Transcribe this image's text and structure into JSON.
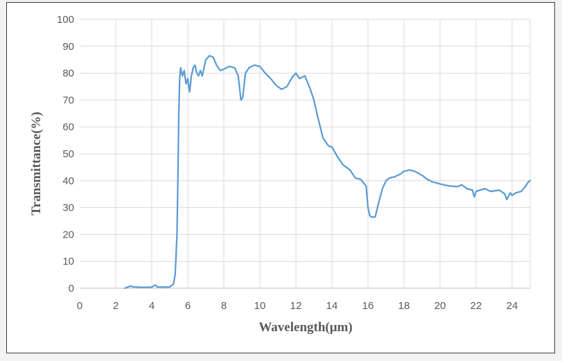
{
  "chart_data": {
    "type": "line",
    "xlabel": "Wavelength(μm)",
    "ylabel": "Transmittance(%)",
    "xlim": [
      0,
      25
    ],
    "ylim": [
      0,
      100
    ],
    "x_ticks": [
      "0",
      "2",
      "4",
      "6",
      "8",
      "10",
      "12",
      "14",
      "16",
      "18",
      "20",
      "22",
      "24"
    ],
    "y_ticks": [
      "0",
      "10",
      "20",
      "30",
      "40",
      "50",
      "60",
      "70",
      "80",
      "90",
      "100"
    ],
    "grid": true,
    "legend": "none",
    "line_color": "#5b9bd5",
    "series": [
      {
        "x": [
          2.5,
          2.8,
          3.0,
          3.5,
          4.0,
          4.2,
          4.3,
          4.5,
          5.0,
          5.2,
          5.3,
          5.4,
          5.45,
          5.5,
          5.55,
          5.6,
          5.7,
          5.8,
          5.9,
          6.0,
          6.1,
          6.2,
          6.3,
          6.4,
          6.5,
          6.6,
          6.7,
          6.8,
          7.0,
          7.2,
          7.4,
          7.6,
          7.8,
          8.0,
          8.3,
          8.6,
          8.8,
          8.95,
          9.05,
          9.2,
          9.4,
          9.7,
          10.0,
          10.3,
          10.6,
          10.9,
          11.2,
          11.5,
          11.8,
          12.0,
          12.2,
          12.5,
          12.8,
          13.0,
          13.2,
          13.5,
          13.8,
          14.0,
          14.3,
          14.6,
          15.0,
          15.3,
          15.6,
          15.9,
          16.0,
          16.1,
          16.2,
          16.4,
          16.6,
          16.8,
          17.0,
          17.2,
          17.5,
          17.8,
          18.0,
          18.3,
          18.6,
          19.0,
          19.3,
          19.6,
          19.8,
          20.0,
          20.3,
          20.6,
          21.0,
          21.2,
          21.5,
          21.8,
          21.9,
          22.0,
          22.2,
          22.5,
          22.8,
          23.0,
          23.3,
          23.6,
          23.7,
          23.9,
          24.0,
          24.2,
          24.5,
          24.7,
          24.9,
          25.0
        ],
        "y": [
          0,
          0.8,
          0.5,
          0.3,
          0.4,
          1.2,
          0.5,
          0.4,
          0.5,
          1.5,
          5,
          20,
          40,
          65,
          78,
          82,
          79,
          81,
          76,
          78,
          73,
          79,
          82,
          83,
          80,
          79,
          81,
          79,
          85,
          86.5,
          86,
          83,
          81,
          81.5,
          82.5,
          82,
          79,
          70,
          71,
          80,
          82,
          83,
          82.5,
          80,
          78,
          75.5,
          74,
          75,
          78.5,
          80,
          78,
          79,
          74,
          70,
          64,
          56,
          53,
          52.5,
          49,
          46,
          44,
          41,
          40.5,
          38,
          30,
          27,
          26.5,
          26.5,
          32,
          37,
          40,
          41,
          41.5,
          42.5,
          43.5,
          44,
          43.5,
          42,
          40.5,
          39.5,
          39.2,
          38.8,
          38.3,
          38,
          37.8,
          38.5,
          37,
          36.5,
          34,
          36,
          36.5,
          37,
          36,
          36.2,
          36.5,
          35,
          33,
          35.5,
          34.5,
          35.5,
          36,
          37.5,
          39.5,
          40
        ]
      }
    ]
  }
}
